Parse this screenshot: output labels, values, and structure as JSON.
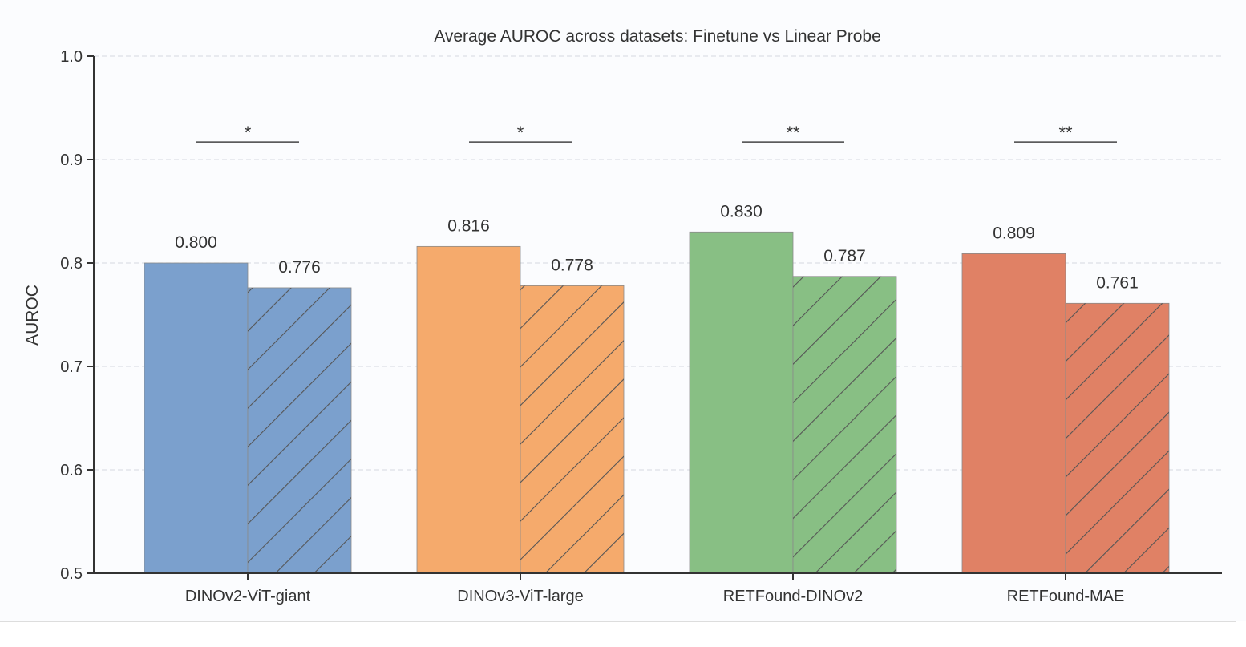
{
  "chart_data": {
    "type": "bar",
    "title": "Average AUROC across datasets: Finetune vs Linear Probe",
    "xlabel": "",
    "ylabel": "AUROC",
    "ylim": [
      0.5,
      1.0
    ],
    "yticks": [
      "0.5",
      "0.6",
      "0.7",
      "0.8",
      "0.9",
      "1.0"
    ],
    "grid": "horizontal dashed",
    "categories": [
      "DINOv2-ViT-giant",
      "DINOv3-ViT-large",
      "RETFound-DINOv2",
      "RETFound-MAE"
    ],
    "colors": [
      "#7ba0cd",
      "#f5aa6c",
      "#88bf84",
      "#e08165"
    ],
    "series": [
      {
        "style": "solid",
        "values": [
          0.8,
          0.816,
          0.83,
          0.809
        ],
        "labels": [
          "0.800",
          "0.816",
          "0.830",
          "0.809"
        ]
      },
      {
        "style": "hatched",
        "values": [
          0.776,
          0.778,
          0.787,
          0.761
        ],
        "labels": [
          "0.776",
          "0.778",
          "0.787",
          "0.761"
        ]
      }
    ],
    "significance": [
      "*",
      "*",
      "**",
      "**"
    ],
    "significance_level": 0.917
  }
}
